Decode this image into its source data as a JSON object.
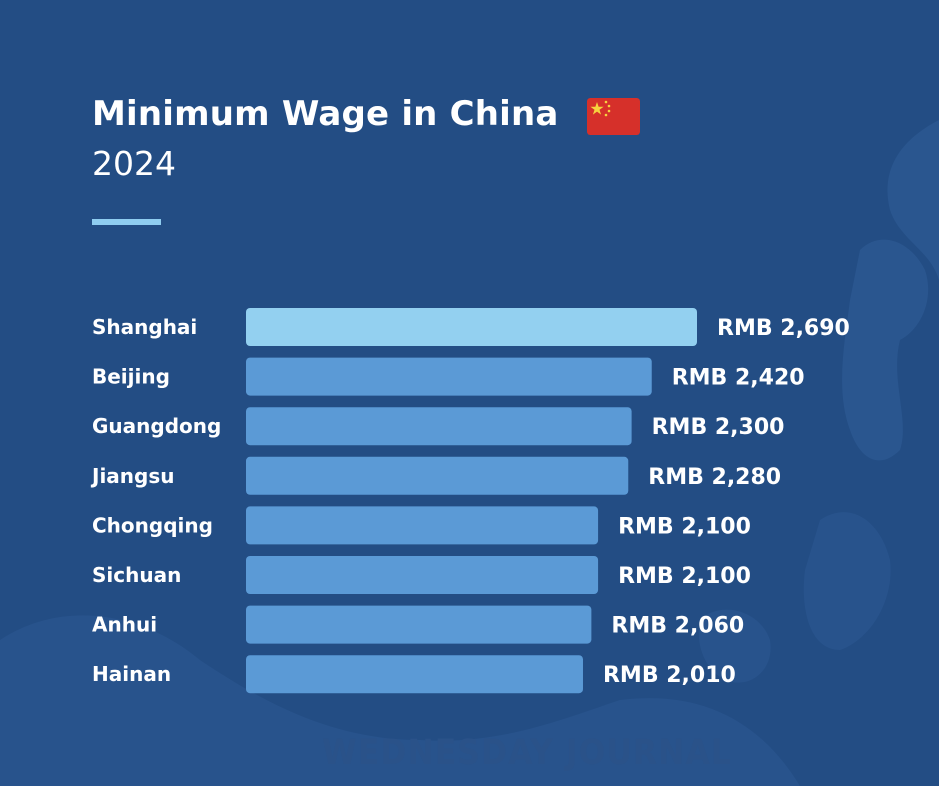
{
  "header": {
    "title": "Minimum Wage in China",
    "subtitle": "2024"
  },
  "flag": {
    "icon": "china-flag-icon",
    "color": "#d6302a",
    "star_color": "#f7d23e"
  },
  "colors": {
    "background": "#234d84",
    "highlight_bar": "#93d0f0",
    "bar": "#5b9ad6",
    "text": "#ffffff"
  },
  "watermark": "WEDNESDAY JOURNAL",
  "chart_data": {
    "type": "bar",
    "orientation": "horizontal",
    "categories": [
      "Shanghai",
      "Beijing",
      "Guangdong",
      "Jiangsu",
      "Chongqing",
      "Sichuan",
      "Anhui",
      "Hainan"
    ],
    "values": [
      2690,
      2420,
      2300,
      2280,
      2100,
      2100,
      2060,
      2010
    ],
    "value_labels": [
      "RMB 2,690",
      "RMB 2,420",
      "RMB 2,300",
      "RMB 2,280",
      "RMB 2,100",
      "RMB 2,100",
      "RMB 2,060",
      "RMB 2,010"
    ],
    "highlight_index": 0,
    "grid": false
  }
}
